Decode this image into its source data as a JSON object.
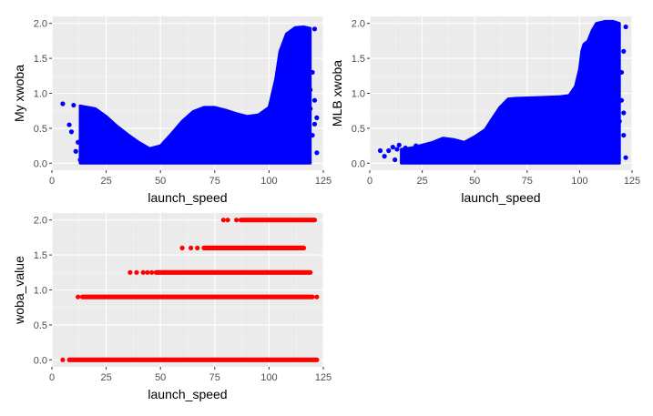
{
  "chart_data": [
    {
      "type": "scatter",
      "xlabel": "launch_speed",
      "ylabel": "My xwoba",
      "xlim": [
        0,
        125
      ],
      "ylim": [
        0,
        2.0
      ],
      "xticks": [
        0,
        25,
        50,
        75,
        100,
        125
      ],
      "xtick_labels": [
        "0",
        "25",
        "50",
        "75",
        "100",
        "125"
      ],
      "yticks": [
        0,
        0.5,
        1.0,
        1.5,
        2.0
      ],
      "ytick_labels": [
        "0.0",
        "0.5",
        "1.0",
        "1.5",
        "2.0"
      ],
      "color": "#0000ff",
      "grid": true,
      "panel_background": "#ebebeb",
      "envelope": {
        "upper": [
          [
            13,
            0.82
          ],
          [
            20,
            0.78
          ],
          [
            25,
            0.67
          ],
          [
            30,
            0.53
          ],
          [
            35,
            0.41
          ],
          [
            40,
            0.3
          ],
          [
            45,
            0.21
          ],
          [
            50,
            0.25
          ],
          [
            55,
            0.42
          ],
          [
            60,
            0.6
          ],
          [
            65,
            0.74
          ],
          [
            70,
            0.8
          ],
          [
            75,
            0.8
          ],
          [
            80,
            0.76
          ],
          [
            85,
            0.71
          ],
          [
            90,
            0.67
          ],
          [
            95,
            0.69
          ],
          [
            100,
            0.8
          ],
          [
            103,
            1.2
          ],
          [
            105,
            1.6
          ],
          [
            108,
            1.85
          ],
          [
            112,
            1.94
          ],
          [
            116,
            1.95
          ],
          [
            119,
            1.93
          ]
        ],
        "lower": [
          [
            13,
            0
          ],
          [
            119,
            0
          ]
        ]
      },
      "points": [
        [
          5,
          0.85
        ],
        [
          8,
          0.55
        ],
        [
          9,
          0.45
        ],
        [
          10,
          0.83
        ],
        [
          11,
          0.17
        ],
        [
          12,
          0.3
        ],
        [
          13,
          0.05
        ],
        [
          14,
          0.58
        ],
        [
          15,
          0.43
        ],
        [
          17,
          0.11
        ],
        [
          18,
          0.32
        ],
        [
          20,
          0.05
        ],
        [
          22,
          0.12
        ],
        [
          115,
          0.02
        ],
        [
          117,
          0.22
        ],
        [
          119,
          1.05
        ],
        [
          119,
          0.78
        ],
        [
          120,
          0.4
        ],
        [
          120,
          1.3
        ],
        [
          121,
          0.56
        ],
        [
          121,
          0.9
        ],
        [
          122,
          0.15
        ],
        [
          122,
          0.65
        ],
        [
          121,
          1.92
        ]
      ]
    },
    {
      "type": "scatter",
      "xlabel": "launch_speed",
      "ylabel": "MLB xwoba",
      "xlim": [
        0,
        125
      ],
      "ylim": [
        0,
        2.0
      ],
      "xticks": [
        0,
        25,
        50,
        75,
        100,
        125
      ],
      "xtick_labels": [
        "0",
        "25",
        "50",
        "75",
        "100",
        "125"
      ],
      "yticks": [
        0,
        0.5,
        1.0,
        1.5,
        2.0
      ],
      "ytick_labels": [
        "0.0",
        "0.5",
        "1.0",
        "1.5",
        "2.0"
      ],
      "color": "#0000ff",
      "grid": true,
      "panel_background": "#ebebeb",
      "envelope": {
        "upper": [
          [
            15,
            0.2
          ],
          [
            20,
            0.22
          ],
          [
            25,
            0.26
          ],
          [
            30,
            0.3
          ],
          [
            35,
            0.36
          ],
          [
            40,
            0.34
          ],
          [
            45,
            0.3
          ],
          [
            50,
            0.38
          ],
          [
            55,
            0.48
          ],
          [
            58,
            0.62
          ],
          [
            62,
            0.8
          ],
          [
            66,
            0.92
          ],
          [
            70,
            0.93
          ],
          [
            80,
            0.94
          ],
          [
            90,
            0.95
          ],
          [
            95,
            0.97
          ],
          [
            98,
            1.1
          ],
          [
            100,
            1.35
          ],
          [
            101,
            1.6
          ],
          [
            102,
            1.7
          ],
          [
            104,
            1.75
          ],
          [
            106,
            1.9
          ],
          [
            108,
            2.0
          ],
          [
            112,
            2.03
          ],
          [
            116,
            2.03
          ],
          [
            119,
            2.0
          ]
        ],
        "lower": [
          [
            15,
            0
          ],
          [
            119,
            0
          ]
        ]
      },
      "points": [
        [
          5,
          0.18
        ],
        [
          7,
          0.1
        ],
        [
          9,
          0.18
        ],
        [
          11,
          0.23
        ],
        [
          12,
          0.05
        ],
        [
          13,
          0.2
        ],
        [
          14,
          0.26
        ],
        [
          16,
          0.04
        ],
        [
          17,
          0.22
        ],
        [
          20,
          0.03
        ],
        [
          22,
          0.25
        ],
        [
          118,
          0.25
        ],
        [
          119,
          0.6
        ],
        [
          120,
          0.9
        ],
        [
          120,
          1.3
        ],
        [
          121,
          0.4
        ],
        [
          121,
          1.6
        ],
        [
          122,
          0.08
        ],
        [
          122,
          1.95
        ],
        [
          121,
          0.72
        ]
      ]
    },
    {
      "type": "scatter",
      "xlabel": "launch_speed",
      "ylabel": "woba_value",
      "xlim": [
        0,
        125
      ],
      "ylim": [
        0,
        2.0
      ],
      "xticks": [
        0,
        25,
        50,
        75,
        100,
        125
      ],
      "xtick_labels": [
        "0",
        "25",
        "50",
        "75",
        "100",
        "125"
      ],
      "yticks": [
        0,
        0.5,
        1.0,
        1.5,
        2.0
      ],
      "ytick_labels": [
        "0.0",
        "0.5",
        "1.0",
        "1.5",
        "2.0"
      ],
      "color": "#ff0000",
      "grid": true,
      "panel_background": "#ebebeb",
      "bands": [
        {
          "y": 0.0,
          "segments": [
            [
              8,
              122
            ]
          ],
          "points": [
            5
          ]
        },
        {
          "y": 0.9,
          "segments": [
            [
              14,
              120
            ]
          ],
          "points": [
            12,
            122
          ]
        },
        {
          "y": 1.25,
          "segments": [
            [
              48,
              119
            ]
          ],
          "points": [
            36,
            39,
            42,
            44,
            46
          ]
        },
        {
          "y": 1.6,
          "segments": [
            [
              70,
              116
            ]
          ],
          "points": [
            60,
            64,
            67
          ]
        },
        {
          "y": 2.0,
          "segments": [
            [
              87,
              121
            ]
          ],
          "points": [
            79,
            81,
            85
          ]
        }
      ]
    }
  ]
}
